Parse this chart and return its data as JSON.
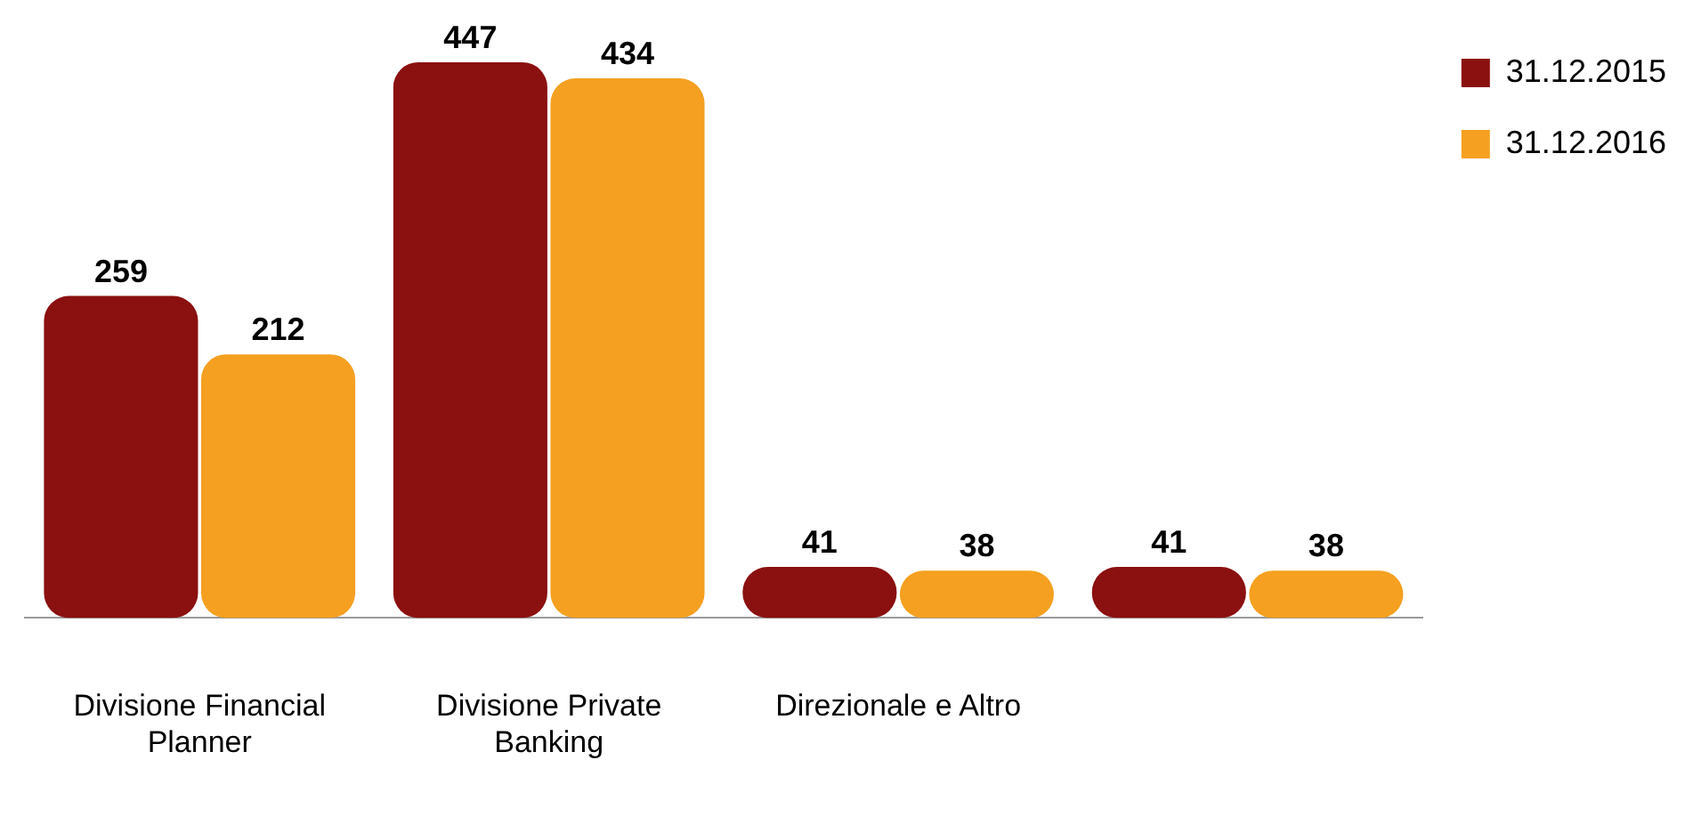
{
  "chart_data": {
    "type": "bar",
    "categories": [
      "Divisione Financial Planner",
      "Divisione Private Banking",
      "Direzionale e Altro",
      null
    ],
    "series": [
      {
        "name": "31.12.2015",
        "color": "#8b1010",
        "values": [
          259,
          447,
          41,
          41
        ]
      },
      {
        "name": "31.12.2016",
        "color": "#f5a020",
        "values": [
          212,
          434,
          38,
          38
        ]
      }
    ],
    "data_labels": true,
    "legend": "top right",
    "grid": false
  }
}
